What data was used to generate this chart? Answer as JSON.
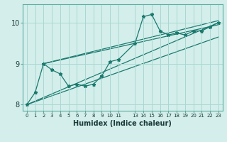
{
  "title": "",
  "xlabel": "Humidex (Indice chaleur)",
  "bg_color": "#d4eeeb",
  "line_color": "#1a7a6e",
  "grid_color": "#a8d8d2",
  "xlim": [
    -0.5,
    23.5
  ],
  "ylim": [
    7.85,
    10.45
  ],
  "yticks": [
    8,
    9,
    10
  ],
  "xtick_positions": [
    0,
    1,
    2,
    3,
    4,
    5,
    6,
    7,
    8,
    9,
    10,
    11,
    13,
    14,
    15,
    16,
    17,
    18,
    19,
    20,
    21,
    22,
    23
  ],
  "xtick_labels": [
    "0",
    "1",
    "2",
    "3",
    "4",
    "5",
    "6",
    "7",
    "8",
    "9",
    "10",
    "11",
    "13",
    "14",
    "15",
    "16",
    "17",
    "18",
    "19",
    "20",
    "21",
    "22",
    "23"
  ],
  "main_x": [
    0,
    1,
    2,
    3,
    4,
    5,
    6,
    7,
    8,
    9,
    10,
    11,
    13,
    14,
    15,
    16,
    17,
    18,
    19,
    20,
    21,
    22,
    23
  ],
  "main_y": [
    8.0,
    8.3,
    9.0,
    8.85,
    8.75,
    8.45,
    8.5,
    8.45,
    8.5,
    8.7,
    9.05,
    9.1,
    9.5,
    10.15,
    10.2,
    9.8,
    9.7,
    9.75,
    9.7,
    9.8,
    9.8,
    9.9,
    10.0
  ],
  "trend_lines": [
    {
      "x0": 0,
      "y0": 8.0,
      "x1": 23,
      "y1": 10.0
    },
    {
      "x0": 0,
      "y0": 8.0,
      "x1": 23,
      "y1": 9.65
    },
    {
      "x0": 2,
      "y0": 9.0,
      "x1": 23,
      "y1": 9.95
    },
    {
      "x0": 2,
      "y0": 9.0,
      "x1": 23,
      "y1": 10.05
    }
  ]
}
